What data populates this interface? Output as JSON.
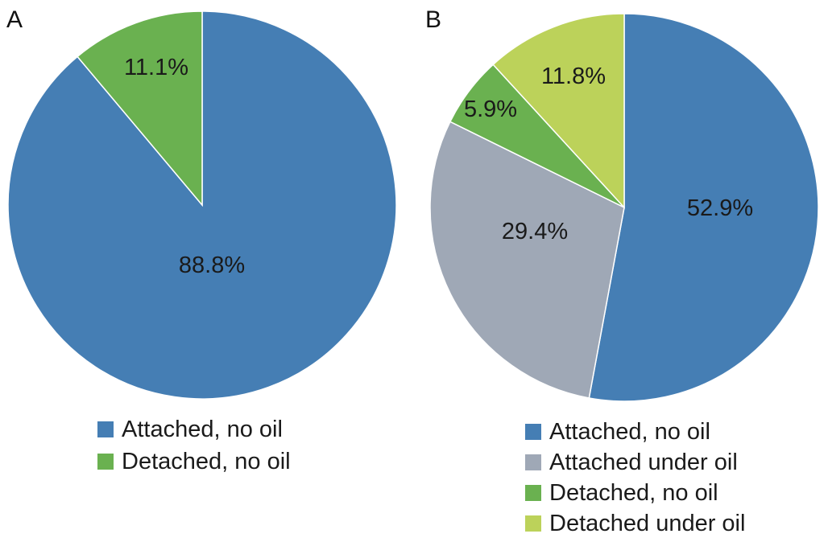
{
  "chart_data": [
    {
      "type": "pie",
      "panel_label": "A",
      "slices": [
        {
          "name": "Attached, no oil",
          "value": 88.8,
          "label": "88.8%",
          "color": "#457EB4"
        },
        {
          "name": "Detached, no oil",
          "value": 11.1,
          "label": "11.1%",
          "color": "#6AB150"
        }
      ],
      "legend": [
        "Attached, no oil",
        "Detached, no oil"
      ],
      "legend_placement": "bottom",
      "start_angle": "12 o'clock",
      "direction": "clockwise"
    },
    {
      "type": "pie",
      "panel_label": "B",
      "slices": [
        {
          "name": "Attached, no oil",
          "value": 52.9,
          "label": "52.9%",
          "color": "#457EB4"
        },
        {
          "name": "Attached under oil",
          "value": 29.4,
          "label": "29.4%",
          "color": "#9FA8B6"
        },
        {
          "name": "Detached, no oil",
          "value": 5.9,
          "label": "5.9%",
          "color": "#6AB150"
        },
        {
          "name": "Detached under oil",
          "value": 11.8,
          "label": "11.8%",
          "color": "#BCD25A"
        }
      ],
      "legend": [
        "Attached, no oil",
        "Attached under oil",
        "Detached, no oil",
        "Detached under oil"
      ],
      "legend_placement": "bottom",
      "start_angle": "12 o'clock",
      "direction": "clockwise"
    }
  ]
}
